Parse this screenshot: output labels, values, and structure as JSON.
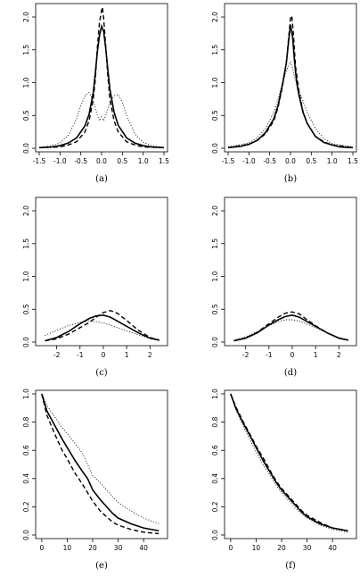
{
  "chart_data": [
    {
      "panel_label": "(a)",
      "type": "line",
      "xlim": [
        -1.5,
        1.5
      ],
      "ylim": [
        0,
        2.15
      ],
      "xticks": [
        -1.5,
        -1.0,
        -0.5,
        0.0,
        0.5,
        1.0,
        1.5
      ],
      "xticklabels": [
        "-1.5",
        "-1.0",
        "-0.5",
        "0.0",
        "0.5",
        "1.0",
        "1.5"
      ],
      "yticks": [
        0,
        0.5,
        1.0,
        1.5,
        2.0
      ],
      "yticklabels": [
        "0.0",
        "0.5",
        "1.0",
        "1.5",
        "2.0"
      ],
      "series": [
        {
          "style": "solid",
          "x": [
            -1.5,
            -1.2,
            -1.0,
            -0.8,
            -0.6,
            -0.4,
            -0.3,
            -0.2,
            -0.15,
            -0.1,
            -0.05,
            0.0,
            0.05,
            0.1,
            0.15,
            0.2,
            0.3,
            0.4,
            0.6,
            0.8,
            1.0,
            1.2,
            1.5
          ],
          "y": [
            0.01,
            0.02,
            0.04,
            0.08,
            0.16,
            0.34,
            0.52,
            0.85,
            1.15,
            1.48,
            1.72,
            1.86,
            1.78,
            1.52,
            1.2,
            0.9,
            0.55,
            0.35,
            0.16,
            0.08,
            0.04,
            0.02,
            0.01
          ]
        },
        {
          "style": "dashed",
          "x": [
            -1.5,
            -1.0,
            -0.8,
            -0.6,
            -0.4,
            -0.3,
            -0.2,
            -0.15,
            -0.1,
            -0.05,
            0.0,
            0.02,
            0.05,
            0.1,
            0.15,
            0.2,
            0.3,
            0.4,
            0.6,
            0.8,
            1.0,
            1.5
          ],
          "y": [
            0.01,
            0.02,
            0.05,
            0.1,
            0.25,
            0.42,
            0.75,
            1.05,
            1.55,
            1.92,
            2.1,
            2.15,
            1.98,
            1.55,
            1.1,
            0.75,
            0.42,
            0.25,
            0.1,
            0.05,
            0.02,
            0.01
          ]
        },
        {
          "style": "dotted",
          "x": [
            -1.5,
            -1.2,
            -1.0,
            -0.8,
            -0.6,
            -0.5,
            -0.4,
            -0.3,
            -0.2,
            -0.1,
            -0.05,
            0.0,
            0.05,
            0.1,
            0.2,
            0.3,
            0.4,
            0.5,
            0.6,
            0.8,
            1.0,
            1.2,
            1.5
          ],
          "y": [
            0.01,
            0.04,
            0.08,
            0.2,
            0.45,
            0.65,
            0.8,
            0.85,
            0.72,
            0.5,
            0.42,
            0.48,
            0.42,
            0.5,
            0.7,
            0.8,
            0.82,
            0.7,
            0.5,
            0.22,
            0.09,
            0.04,
            0.01
          ]
        }
      ]
    },
    {
      "panel_label": "(b)",
      "type": "line",
      "xlim": [
        -1.5,
        1.5
      ],
      "ylim": [
        0,
        2.15
      ],
      "xticks": [
        -1.5,
        -1.0,
        -0.5,
        0.0,
        0.5,
        1.0,
        1.5
      ],
      "xticklabels": [
        "-1.5",
        "-1.0",
        "-0.5",
        "0.0",
        "0.5",
        "1.0",
        "1.5"
      ],
      "yticks": [
        0,
        0.5,
        1.0,
        1.5,
        2.0
      ],
      "yticklabels": [
        "0.0",
        "0.5",
        "1.0",
        "1.5",
        "2.0"
      ],
      "series": [
        {
          "style": "solid",
          "x": [
            -1.5,
            -1.2,
            -1.0,
            -0.8,
            -0.6,
            -0.4,
            -0.3,
            -0.2,
            -0.1,
            -0.05,
            0.0,
            0.05,
            0.1,
            0.15,
            0.2,
            0.3,
            0.4,
            0.6,
            0.8,
            1.0,
            1.2,
            1.5
          ],
          "y": [
            0.01,
            0.03,
            0.06,
            0.12,
            0.24,
            0.45,
            0.65,
            0.95,
            1.3,
            1.6,
            1.88,
            1.7,
            1.3,
            1.0,
            0.82,
            0.55,
            0.38,
            0.18,
            0.09,
            0.05,
            0.02,
            0.01
          ]
        },
        {
          "style": "dashed",
          "x": [
            -1.5,
            -1.0,
            -0.8,
            -0.6,
            -0.4,
            -0.3,
            -0.2,
            -0.1,
            -0.05,
            0.0,
            0.03,
            0.07,
            0.12,
            0.2,
            0.3,
            0.4,
            0.6,
            0.8,
            1.0,
            1.5
          ],
          "y": [
            0.01,
            0.06,
            0.12,
            0.22,
            0.42,
            0.62,
            0.92,
            1.3,
            1.65,
            1.98,
            2.02,
            1.75,
            1.25,
            0.88,
            0.56,
            0.38,
            0.18,
            0.1,
            0.05,
            0.01
          ]
        },
        {
          "style": "dotted",
          "x": [
            -1.5,
            -1.0,
            -0.8,
            -0.6,
            -0.4,
            -0.3,
            -0.2,
            -0.1,
            0.0,
            0.05,
            0.1,
            0.2,
            0.3,
            0.4,
            0.6,
            0.8,
            1.0,
            1.5
          ],
          "y": [
            0.02,
            0.08,
            0.16,
            0.3,
            0.55,
            0.75,
            0.98,
            1.18,
            1.32,
            1.22,
            1.08,
            0.9,
            0.72,
            0.55,
            0.3,
            0.15,
            0.07,
            0.02
          ]
        }
      ]
    },
    {
      "panel_label": "(c)",
      "type": "line",
      "xlim": [
        -2.75,
        2.6
      ],
      "ylim": [
        0,
        2.15
      ],
      "xticks": [
        -2,
        -1,
        0,
        1,
        2
      ],
      "xticklabels": [
        "-2",
        "-1",
        "0",
        "1",
        "2"
      ],
      "yticks": [
        0,
        0.5,
        1.0,
        1.5,
        2.0
      ],
      "yticklabels": [
        "0.0",
        "0.5",
        "1.0",
        "1.5",
        "2.0"
      ],
      "series": [
        {
          "style": "solid",
          "x": [
            -2.5,
            -2.0,
            -1.5,
            -1.0,
            -0.6,
            -0.3,
            0.0,
            0.3,
            0.6,
            1.0,
            1.5,
            2.0,
            2.4
          ],
          "y": [
            0.02,
            0.07,
            0.16,
            0.28,
            0.36,
            0.4,
            0.41,
            0.38,
            0.32,
            0.24,
            0.14,
            0.06,
            0.03
          ]
        },
        {
          "style": "dashed",
          "x": [
            -2.5,
            -2.0,
            -1.5,
            -1.0,
            -0.6,
            -0.3,
            0.0,
            0.3,
            0.6,
            1.0,
            1.5,
            2.0,
            2.4
          ],
          "y": [
            0.02,
            0.05,
            0.12,
            0.22,
            0.3,
            0.38,
            0.45,
            0.48,
            0.44,
            0.33,
            0.18,
            0.07,
            0.03
          ]
        },
        {
          "style": "dotted",
          "x": [
            -2.5,
            -2.0,
            -1.5,
            -1.0,
            -0.6,
            -0.3,
            0.0,
            0.3,
            0.6,
            1.0,
            1.5,
            2.0,
            2.4
          ],
          "y": [
            0.1,
            0.18,
            0.25,
            0.3,
            0.32,
            0.31,
            0.29,
            0.26,
            0.22,
            0.17,
            0.11,
            0.06,
            0.03
          ]
        }
      ]
    },
    {
      "panel_label": "(d)",
      "type": "line",
      "xlim": [
        -2.75,
        2.6
      ],
      "ylim": [
        0,
        2.15
      ],
      "xticks": [
        -2,
        -1,
        0,
        1,
        2
      ],
      "xticklabels": [
        "-2",
        "-1",
        "0",
        "1",
        "2"
      ],
      "yticks": [
        0,
        0.5,
        1.0,
        1.5,
        2.0
      ],
      "yticklabels": [
        "0.0",
        "0.5",
        "1.0",
        "1.5",
        "2.0"
      ],
      "series": [
        {
          "style": "solid",
          "x": [
            -2.5,
            -2.0,
            -1.5,
            -1.0,
            -0.6,
            -0.3,
            0.0,
            0.3,
            0.6,
            1.0,
            1.5,
            2.0,
            2.4
          ],
          "y": [
            0.02,
            0.06,
            0.14,
            0.26,
            0.34,
            0.39,
            0.41,
            0.38,
            0.32,
            0.24,
            0.14,
            0.06,
            0.03
          ]
        },
        {
          "style": "dashed",
          "x": [
            -2.5,
            -2.0,
            -1.5,
            -1.0,
            -0.6,
            -0.3,
            0.0,
            0.3,
            0.6,
            1.0,
            1.5,
            2.0,
            2.4
          ],
          "y": [
            0.02,
            0.06,
            0.15,
            0.28,
            0.38,
            0.44,
            0.46,
            0.43,
            0.35,
            0.25,
            0.14,
            0.06,
            0.03
          ]
        },
        {
          "style": "dotted",
          "x": [
            -2.5,
            -2.0,
            -1.5,
            -1.0,
            -0.6,
            -0.3,
            0.0,
            0.3,
            0.6,
            1.0,
            1.5,
            2.0,
            2.4
          ],
          "y": [
            0.03,
            0.08,
            0.16,
            0.25,
            0.31,
            0.34,
            0.34,
            0.32,
            0.28,
            0.22,
            0.14,
            0.07,
            0.03
          ]
        }
      ]
    },
    {
      "panel_label": "(e)",
      "type": "line",
      "xlim": [
        -1,
        48
      ],
      "ylim": [
        0,
        1.0
      ],
      "xticks": [
        0,
        10,
        20,
        30,
        40
      ],
      "xticklabels": [
        "0",
        "10",
        "20",
        "30",
        "40"
      ],
      "yticks": [
        0,
        0.2,
        0.4,
        0.6,
        0.8,
        1.0
      ],
      "yticklabels": [
        "0.0",
        "0.2",
        "0.4",
        "0.6",
        "0.8",
        "1.0"
      ],
      "series": [
        {
          "style": "solid",
          "x": [
            0,
            2,
            5,
            8,
            10,
            13,
            16,
            18,
            20,
            23,
            26,
            28,
            30,
            35,
            40,
            46
          ],
          "y": [
            1.0,
            0.88,
            0.78,
            0.68,
            0.62,
            0.53,
            0.45,
            0.4,
            0.32,
            0.25,
            0.19,
            0.15,
            0.12,
            0.08,
            0.05,
            0.03
          ]
        },
        {
          "style": "dashed",
          "x": [
            0,
            2,
            5,
            8,
            10,
            13,
            16,
            18,
            20,
            23,
            26,
            28,
            30,
            35,
            40,
            46
          ],
          "y": [
            1.0,
            0.85,
            0.72,
            0.6,
            0.54,
            0.44,
            0.36,
            0.3,
            0.24,
            0.17,
            0.12,
            0.09,
            0.07,
            0.04,
            0.02,
            0.01
          ]
        },
        {
          "style": "dotted",
          "x": [
            0,
            2,
            5,
            8,
            10,
            13,
            16,
            18,
            20,
            23,
            26,
            28,
            30,
            35,
            40,
            46
          ],
          "y": [
            1.0,
            0.92,
            0.84,
            0.76,
            0.72,
            0.65,
            0.58,
            0.5,
            0.42,
            0.37,
            0.31,
            0.27,
            0.23,
            0.17,
            0.12,
            0.08
          ]
        }
      ]
    },
    {
      "panel_label": "(f)",
      "type": "line",
      "xlim": [
        -1,
        48
      ],
      "ylim": [
        0,
        1.0
      ],
      "xticks": [
        0,
        10,
        20,
        30,
        40
      ],
      "xticklabels": [
        "0",
        "10",
        "20",
        "30",
        "40"
      ],
      "yticks": [
        0,
        0.2,
        0.4,
        0.6,
        0.8,
        1.0
      ],
      "yticklabels": [
        "0.0",
        "0.2",
        "0.4",
        "0.6",
        "0.8",
        "1.0"
      ],
      "series": [
        {
          "style": "solid",
          "x": [
            0,
            2,
            5,
            8,
            10,
            13,
            16,
            18,
            20,
            23,
            26,
            28,
            30,
            35,
            40,
            46
          ],
          "y": [
            1.0,
            0.9,
            0.79,
            0.69,
            0.62,
            0.52,
            0.43,
            0.37,
            0.32,
            0.26,
            0.2,
            0.16,
            0.13,
            0.08,
            0.05,
            0.03
          ]
        },
        {
          "style": "dashed",
          "x": [
            0,
            2,
            5,
            8,
            10,
            13,
            16,
            18,
            20,
            23,
            26,
            28,
            30,
            35,
            40,
            46
          ],
          "y": [
            1.0,
            0.91,
            0.8,
            0.7,
            0.63,
            0.54,
            0.44,
            0.38,
            0.33,
            0.27,
            0.21,
            0.17,
            0.14,
            0.09,
            0.05,
            0.03
          ]
        },
        {
          "style": "dotted",
          "x": [
            0,
            2,
            5,
            8,
            10,
            13,
            16,
            18,
            20,
            23,
            26,
            28,
            30,
            35,
            40,
            46
          ],
          "y": [
            1.0,
            0.89,
            0.77,
            0.66,
            0.59,
            0.49,
            0.41,
            0.35,
            0.3,
            0.24,
            0.18,
            0.15,
            0.12,
            0.07,
            0.04,
            0.02
          ]
        }
      ]
    }
  ]
}
